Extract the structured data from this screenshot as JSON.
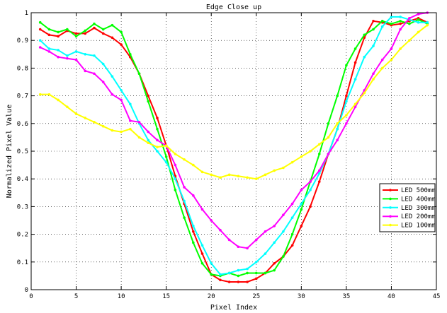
{
  "chart_data": {
    "type": "line",
    "title": "Edge Close up",
    "xlabel": "Pixel Index",
    "ylabel": "Normalized Pixel Value",
    "xlim": [
      0,
      45
    ],
    "ylim": [
      0,
      1
    ],
    "xticks": [
      0,
      5,
      10,
      15,
      20,
      25,
      30,
      35,
      40,
      45
    ],
    "yticks": [
      0,
      0.1,
      0.2,
      0.3,
      0.4,
      0.5,
      0.6,
      0.7,
      0.8,
      0.9,
      1
    ],
    "grid": true,
    "legend_position": "lower-right",
    "x": [
      1,
      2,
      3,
      4,
      5,
      6,
      7,
      8,
      9,
      10,
      11,
      12,
      13,
      14,
      15,
      16,
      17,
      18,
      19,
      20,
      21,
      22,
      23,
      24,
      25,
      26,
      27,
      28,
      29,
      30,
      31,
      32,
      33,
      34,
      35,
      36,
      37,
      38,
      39,
      40,
      41,
      42,
      43,
      44
    ],
    "series": [
      {
        "name": "LED 500mm",
        "color": "#ff0000",
        "values": [
          0.94,
          0.92,
          0.915,
          0.935,
          0.925,
          0.925,
          0.945,
          0.925,
          0.91,
          0.885,
          0.84,
          0.78,
          0.7,
          0.62,
          0.52,
          0.41,
          0.31,
          0.21,
          0.13,
          0.055,
          0.035,
          0.028,
          0.028,
          0.028,
          0.04,
          0.06,
          0.095,
          0.12,
          0.16,
          0.23,
          0.3,
          0.39,
          0.49,
          0.58,
          0.7,
          0.82,
          0.91,
          0.97,
          0.965,
          0.955,
          0.96,
          0.97,
          0.98,
          0.965
        ]
      },
      {
        "name": "LED 400mm",
        "color": "#00ff00",
        "values": [
          0.965,
          0.94,
          0.93,
          0.94,
          0.915,
          0.935,
          0.96,
          0.94,
          0.955,
          0.93,
          0.85,
          0.78,
          0.68,
          0.58,
          0.48,
          0.36,
          0.26,
          0.17,
          0.095,
          0.055,
          0.05,
          0.06,
          0.05,
          0.06,
          0.06,
          0.06,
          0.07,
          0.12,
          0.2,
          0.29,
          0.39,
          0.49,
          0.6,
          0.7,
          0.81,
          0.87,
          0.92,
          0.94,
          0.97,
          0.96,
          0.97,
          0.96,
          0.975,
          0.96
        ]
      },
      {
        "name": "LED 300mm",
        "color": "#00ffff",
        "values": [
          0.9,
          0.87,
          0.865,
          0.845,
          0.86,
          0.85,
          0.845,
          0.815,
          0.77,
          0.72,
          0.67,
          0.6,
          0.54,
          0.5,
          0.46,
          0.4,
          0.32,
          0.23,
          0.16,
          0.095,
          0.055,
          0.06,
          0.07,
          0.075,
          0.1,
          0.13,
          0.17,
          0.21,
          0.26,
          0.31,
          0.36,
          0.42,
          0.49,
          0.58,
          0.68,
          0.76,
          0.84,
          0.88,
          0.95,
          0.985,
          0.985,
          0.975,
          0.965,
          0.965
        ]
      },
      {
        "name": "LED 200mm",
        "color": "#ff00ff",
        "values": [
          0.875,
          0.86,
          0.84,
          0.835,
          0.83,
          0.79,
          0.78,
          0.75,
          0.705,
          0.685,
          0.61,
          0.605,
          0.57,
          0.54,
          0.52,
          0.45,
          0.37,
          0.34,
          0.29,
          0.25,
          0.215,
          0.18,
          0.155,
          0.15,
          0.18,
          0.21,
          0.23,
          0.27,
          0.31,
          0.36,
          0.39,
          0.43,
          0.49,
          0.54,
          0.6,
          0.66,
          0.72,
          0.78,
          0.83,
          0.87,
          0.94,
          0.98,
          0.995,
          1.0
        ]
      },
      {
        "name": "LED 100mm",
        "color": "#ffff00",
        "values": [
          0.705,
          0.705,
          0.685,
          0.66,
          0.635,
          0.62,
          0.605,
          0.59,
          0.575,
          0.57,
          0.58,
          0.55,
          0.53,
          0.515,
          0.52,
          0.49,
          0.47,
          0.45,
          0.425,
          0.415,
          0.405,
          0.415,
          0.41,
          0.405,
          0.4,
          0.415,
          0.43,
          0.44,
          0.46,
          0.48,
          0.5,
          0.525,
          0.55,
          0.6,
          0.63,
          0.67,
          0.71,
          0.76,
          0.8,
          0.83,
          0.87,
          0.9,
          0.93,
          0.955
        ]
      }
    ]
  }
}
